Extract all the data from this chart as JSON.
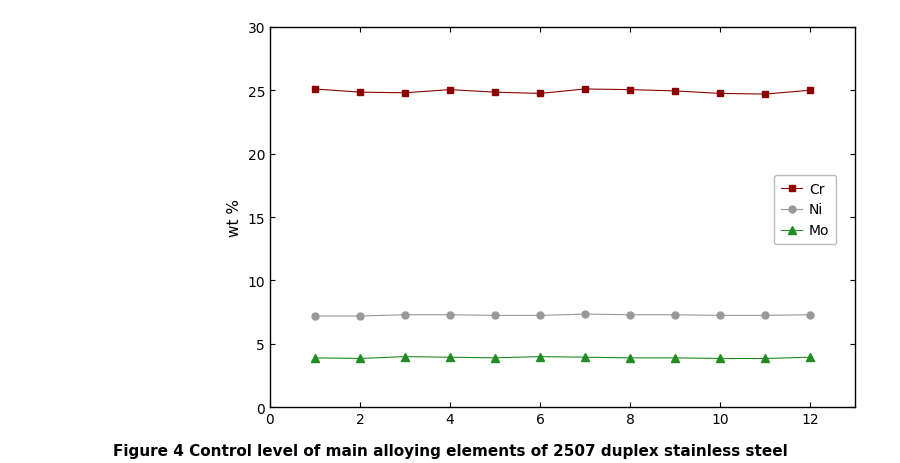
{
  "x": [
    1,
    2,
    3,
    4,
    5,
    6,
    7,
    8,
    9,
    10,
    11,
    12
  ],
  "Cr": [
    25.1,
    24.85,
    24.8,
    25.05,
    24.85,
    24.75,
    25.1,
    25.05,
    24.95,
    24.75,
    24.7,
    25.0
  ],
  "Ni": [
    7.2,
    7.2,
    7.3,
    7.3,
    7.25,
    7.25,
    7.35,
    7.3,
    7.3,
    7.25,
    7.25,
    7.3
  ],
  "Mo": [
    3.9,
    3.85,
    4.0,
    3.95,
    3.9,
    4.0,
    3.95,
    3.9,
    3.9,
    3.85,
    3.85,
    3.95
  ],
  "Cr_color": "#8B0000",
  "Ni_color": "#999999",
  "Mo_color": "#228B22",
  "ylabel": "wt %",
  "xlim": [
    0,
    13
  ],
  "ylim": [
    0,
    30
  ],
  "yticks": [
    0,
    5,
    10,
    15,
    20,
    25,
    30
  ],
  "xticks": [
    0,
    2,
    4,
    6,
    8,
    10,
    12
  ],
  "caption": "Figure 4 Control level of main alloying elements of 2507 duplex stainless steel",
  "legend_labels": [
    "Cr",
    "Ni",
    "Mo"
  ]
}
